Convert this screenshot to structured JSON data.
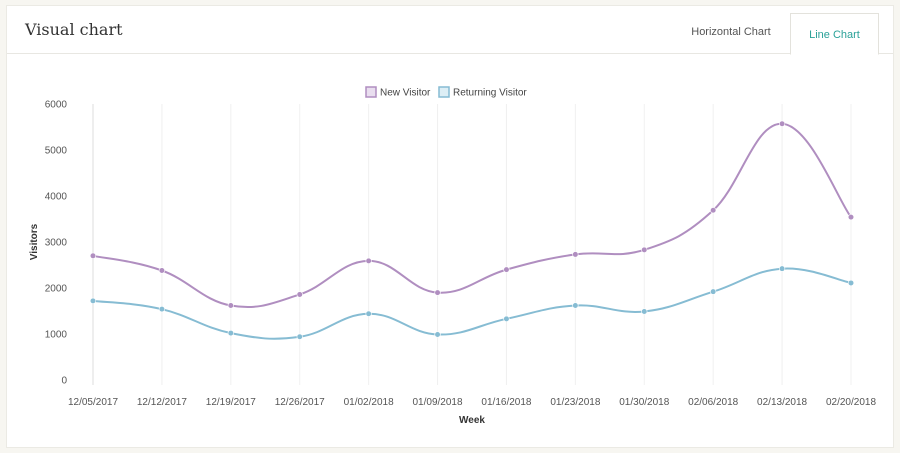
{
  "header": {
    "title": "Visual chart",
    "tabs": [
      {
        "label": "Horizontal Chart",
        "active": false
      },
      {
        "label": "Line Chart",
        "active": true
      }
    ]
  },
  "colors": {
    "new_visitor": "#b08ec0",
    "new_visitor_fill": "#e9deef",
    "returning_visitor": "#86bcd3",
    "returning_visitor_fill": "#ddeef5",
    "active_tab": "#2aa198"
  },
  "chart_data": {
    "type": "line",
    "xlabel": "Week",
    "ylabel": "Visitors",
    "ylim": [
      0,
      6000
    ],
    "yticks": [
      0,
      1000,
      2000,
      3000,
      4000,
      5000,
      6000
    ],
    "categories": [
      "12/05/2017",
      "12/12/2017",
      "12/19/2017",
      "12/26/2017",
      "01/02/2018",
      "01/09/2018",
      "01/16/2018",
      "01/23/2018",
      "01/30/2018",
      "02/06/2018",
      "02/13/2018",
      "02/20/2018"
    ],
    "series": [
      {
        "name": "New Visitor",
        "values": [
          2700,
          2380,
          1620,
          1860,
          2590,
          1900,
          2400,
          2730,
          2830,
          3690,
          5570,
          3540
        ]
      },
      {
        "name": "Returning Visitor",
        "values": [
          1720,
          1540,
          1020,
          940,
          1440,
          990,
          1330,
          1620,
          1490,
          1920,
          2420,
          2110
        ]
      }
    ],
    "legend_position": "top-center",
    "grid": true
  }
}
